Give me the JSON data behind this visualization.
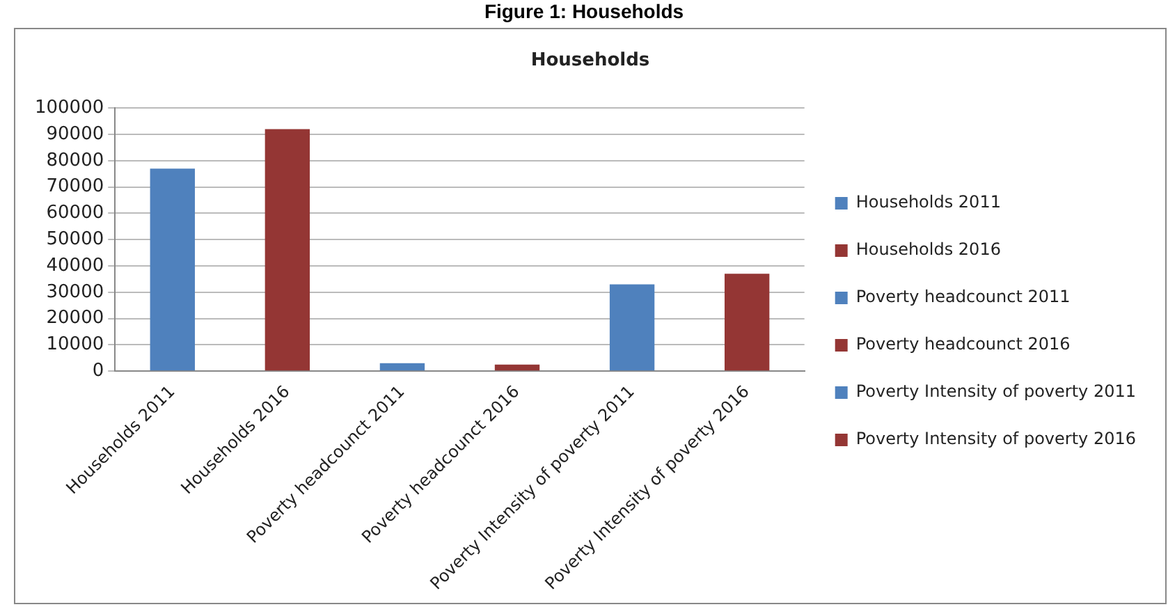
{
  "chart_data": {
    "type": "bar",
    "title": "Households",
    "annotations": [
      "Figure 1: Households"
    ],
    "categories": [
      "Households 2011",
      "Households 2016",
      "Poverty headcounct 2011",
      "Poverty headcounct 2016",
      "Poverty Intensity of poverty 2011",
      "Poverty Intensity of poverty 2016"
    ],
    "series": [
      {
        "name": "Households 2011",
        "color": "#4f81bd",
        "values": [
          77000,
          null,
          null,
          null,
          null,
          null
        ]
      },
      {
        "name": "Households 2016",
        "color": "#943634",
        "values": [
          null,
          92000,
          null,
          null,
          null,
          null
        ]
      },
      {
        "name": "Poverty headcounct 2011",
        "color": "#4f81bd",
        "values": [
          null,
          null,
          3000,
          null,
          null,
          null
        ]
      },
      {
        "name": "Poverty headcounct 2016",
        "color": "#943634",
        "values": [
          null,
          null,
          null,
          2500,
          null,
          null
        ]
      },
      {
        "name": "Poverty Intensity of poverty 2011",
        "color": "#4f81bd",
        "values": [
          null,
          null,
          null,
          null,
          33000,
          null
        ]
      },
      {
        "name": "Poverty Intensity of poverty 2016",
        "color": "#943634",
        "values": [
          null,
          null,
          null,
          null,
          null,
          37000
        ]
      }
    ],
    "ylim": [
      0,
      100000
    ],
    "yticks": [
      0,
      10000,
      20000,
      30000,
      40000,
      50000,
      60000,
      70000,
      80000,
      90000,
      100000
    ],
    "grid": "y",
    "legend": "right"
  }
}
